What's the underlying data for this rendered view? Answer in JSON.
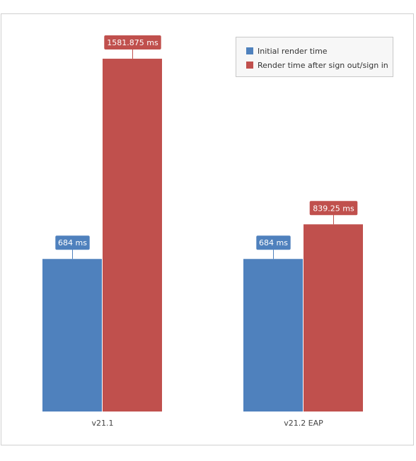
{
  "colors": {
    "initial": "#4f81bd",
    "after": "#c0504d",
    "axis": "#bbbbbb",
    "label_text": "#444444"
  },
  "chart_data": {
    "type": "bar",
    "categories": [
      "v21.1",
      "v21.2 EAP"
    ],
    "series": [
      {
        "name": "Initial render time",
        "values": [
          684,
          684
        ],
        "labels": [
          "684 ms",
          "684 ms"
        ]
      },
      {
        "name": "Render time after sign out/sign in",
        "values": [
          1581.875,
          839.25
        ],
        "labels": [
          "1581.875 ms",
          "839.25 ms"
        ]
      }
    ],
    "ylim": [
      0,
      1750
    ],
    "grid": false,
    "legend": "top-right",
    "title": "",
    "xlabel": "",
    "ylabel": ""
  }
}
